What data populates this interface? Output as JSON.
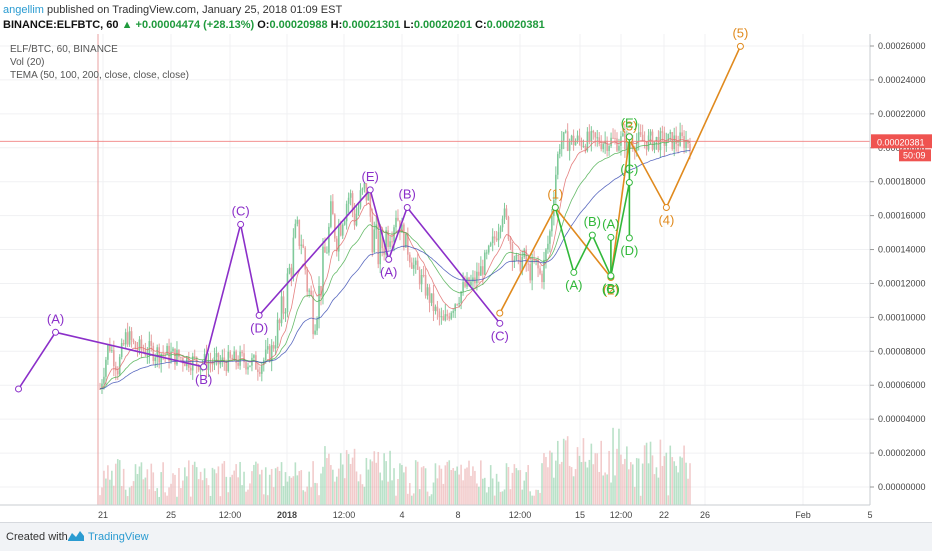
{
  "header": {
    "author": "angellim",
    "published": "published on TradingView.com, January 25, 2018 01:09 EST",
    "symbol": "BINANCE:ELFBTC, 60",
    "change": "▲ +0.00004474 (+28.13%)",
    "o_label": "O:",
    "o_value": "0.00020988",
    "h_label": "H:",
    "h_value": "0.00021301",
    "l_label": "L:",
    "l_value": "0.00020201",
    "c_label": "C:",
    "c_value": "0.00020381"
  },
  "legend": [
    "ELF/BTC, 60, BINANCE",
    "Vol (20)",
    "TEMA (50, 100, 200, close, close, close)"
  ],
  "price_tag": {
    "value": "0.00020381",
    "countdown": "50:09"
  },
  "footer": {
    "created_with": "Created with",
    "brand": "TradingView"
  },
  "colors": {
    "purple_wave": "#8b2fc9",
    "orange_wave": "#e08a1e",
    "green_wave": "#31b83a",
    "candle_up": "#7fc99a",
    "candle_down": "#e7a0a0",
    "current_price_line": "#f08080",
    "price_tag_bg": "#ef5350"
  },
  "chart_data": {
    "type": "candlestick",
    "symbol": "ELF/BTC",
    "interval": "60",
    "y_axis_ticks": [
      "0.00026000",
      "0.00024000",
      "0.00022000",
      "0.00020000",
      "0.00018000",
      "0.00016000",
      "0.00014000",
      "0.00012000",
      "0.00010000",
      "0.00008000",
      "0.00006000",
      "0.00004000",
      "0.00002000",
      "0.00000000"
    ],
    "x_axis_ticks": [
      "21",
      "25",
      "12:00",
      "2018",
      "12:00",
      "4",
      "8",
      "12:00",
      "15",
      "12:00",
      "22",
      "26",
      "Feb",
      "5"
    ],
    "current_price": 0.00020381,
    "price_path": [
      [
        0.0,
        5.8e-05
      ],
      [
        0.015,
        8.5e-05
      ],
      [
        0.03,
        7e-05
      ],
      [
        0.045,
        9e-05
      ],
      [
        0.06,
        8.2e-05
      ],
      [
        0.09,
        8e-05
      ],
      [
        0.12,
        7.8e-05
      ],
      [
        0.16,
        7.4e-05
      ],
      [
        0.2,
        7.3e-05
      ],
      [
        0.24,
        7.5e-05
      ],
      [
        0.27,
        7.2e-05
      ],
      [
        0.29,
        8e-05
      ],
      [
        0.305,
        9.5e-05
      ],
      [
        0.318,
        0.00012
      ],
      [
        0.33,
        0.000145
      ],
      [
        0.34,
        0.00015
      ],
      [
        0.352,
        0.000118
      ],
      [
        0.362,
        0.000102
      ],
      [
        0.372,
        0.000115
      ],
      [
        0.382,
        0.000138
      ],
      [
        0.392,
        0.000158
      ],
      [
        0.402,
        0.00015
      ],
      [
        0.412,
        0.000165
      ],
      [
        0.422,
        0.000172
      ],
      [
        0.432,
        0.00016
      ],
      [
        0.442,
        0.000168
      ],
      [
        0.452,
        0.000175
      ],
      [
        0.462,
        0.00015
      ],
      [
        0.472,
        0.000138
      ],
      [
        0.482,
        0.000146
      ],
      [
        0.492,
        0.000156
      ],
      [
        0.502,
        0.000162
      ],
      [
        0.512,
        0.00015
      ],
      [
        0.522,
        0.00014
      ],
      [
        0.532,
        0.00013
      ],
      [
        0.545,
        0.000122
      ],
      [
        0.558,
        0.000112
      ],
      [
        0.57,
        0.000102
      ],
      [
        0.582,
        9.6e-05
      ],
      [
        0.594,
        0.000105
      ],
      [
        0.606,
        0.000112
      ],
      [
        0.618,
        0.000118
      ],
      [
        0.632,
        0.00012
      ],
      [
        0.646,
        0.000128
      ],
      [
        0.66,
        0.000138
      ],
      [
        0.672,
        0.00015
      ],
      [
        0.682,
        0.000163
      ],
      [
        0.69,
        0.000155
      ],
      [
        0.698,
        0.00014
      ],
      [
        0.708,
        0.00013
      ],
      [
        0.718,
        0.000136
      ],
      [
        0.728,
        0.000126
      ],
      [
        0.738,
        0.000132
      ],
      [
        0.748,
        0.000123
      ],
      [
        0.756,
        0.000138
      ],
      [
        0.762,
        0.000148
      ],
      [
        0.768,
        0.00017
      ],
      [
        0.774,
        0.00019
      ],
      [
        0.78,
        0.000205
      ],
      [
        0.786,
        0.000204
      ]
    ],
    "waves": [
      {
        "name": "purple",
        "color": "purple_wave",
        "points": [
          {
            "x": "2017-12-21",
            "y": 5.78e-05,
            "label": ""
          },
          {
            "x": "2017-12-23",
            "y": 9.12e-05,
            "label": "(A)"
          },
          {
            "x": "2017-12-31",
            "y": 7.08e-05,
            "label": "(B)"
          },
          {
            "x": "2018-01-02",
            "y": 0.0001548,
            "label": "(C)"
          },
          {
            "x": "2018-01-03",
            "y": 0.0001012,
            "label": "(D)"
          },
          {
            "x": "2018-01-09",
            "y": 0.0001752,
            "label": "(E)"
          },
          {
            "x": "2018-01-10",
            "y": 0.0001342,
            "label": "(A)"
          },
          {
            "x": "2018-01-11",
            "y": 0.0001648,
            "label": "(B)"
          },
          {
            "x": "2018-01-16",
            "y": 9.65e-05,
            "label": "(C)"
          }
        ]
      },
      {
        "name": "orange",
        "color": "orange_wave",
        "points": [
          {
            "x": "2018-01-16",
            "y": 0.0001025,
            "label": ""
          },
          {
            "x": "2018-01-19",
            "y": 0.0001648,
            "label": "(1)"
          },
          {
            "x": "2018-01-22",
            "y": 0.0001235,
            "label": "(2)"
          },
          {
            "x": "2018-01-23",
            "y": 0.0002048,
            "label": "(3)"
          },
          {
            "x": "2018-01-25",
            "y": 0.0001648,
            "label": "(4)"
          },
          {
            "x": "2018-01-29",
            "y": 0.0002598,
            "label": "(5)"
          }
        ]
      },
      {
        "name": "green",
        "color": "green_wave",
        "points": [
          {
            "x": "2018-01-19",
            "y": 0.0001648,
            "label": ""
          },
          {
            "x": "2018-01-20",
            "y": 0.0001265,
            "label": "(A)"
          },
          {
            "x": "2018-01-21",
            "y": 0.0001485,
            "label": "(B)"
          },
          {
            "x": "2018-01-22",
            "y": 0.0001242,
            "label": "(C)"
          },
          {
            "x": "2018-01-22",
            "y": 0.0001472,
            "label": "(A)"
          },
          {
            "x": "2018-01-22",
            "y": 0.0001245,
            "label": "(B)"
          },
          {
            "x": "2018-01-23",
            "y": 0.0001795,
            "label": "(C)"
          },
          {
            "x": "2018-01-23",
            "y": 0.0001468,
            "label": "(D)"
          },
          {
            "x": "2018-01-23",
            "y": 0.0002065,
            "label": "(E)"
          }
        ]
      }
    ]
  }
}
